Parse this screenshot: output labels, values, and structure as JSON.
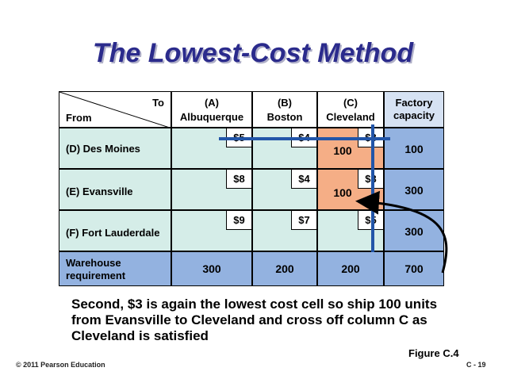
{
  "title": "The  Lowest-Cost Method",
  "table": {
    "corner_to": "To",
    "corner_from": "From",
    "columns": [
      {
        "line1": "(A)",
        "line2": "Albuquerque"
      },
      {
        "line1": "(B)",
        "line2": "Boston"
      },
      {
        "line1": "(C)",
        "line2": "Cleveland"
      }
    ],
    "capacity_header": {
      "line1": "Factory",
      "line2": "capacity"
    },
    "rows": [
      {
        "label": "(D) Des Moines",
        "costs": [
          "$5",
          "$4",
          "$3"
        ],
        "allocations": [
          "",
          "",
          "100"
        ],
        "capacity": "100"
      },
      {
        "label": "(E) Evansville",
        "costs": [
          "$8",
          "$4",
          "$3"
        ],
        "allocations": [
          "",
          "",
          "100"
        ],
        "capacity": "300"
      },
      {
        "label": "(F) Fort Lauderdale",
        "costs": [
          "$9",
          "$7",
          "$5"
        ],
        "allocations": [
          "",
          "",
          ""
        ],
        "capacity": "300"
      }
    ],
    "requirement": {
      "label_line1": "Warehouse",
      "label_line2": "requirement",
      "values": [
        "300",
        "200",
        "200"
      ],
      "total": "700"
    }
  },
  "note_lines": [
    "Second, $3 is again the lowest cost cell so ship 100 units",
    "from Evansville to Cleveland and cross off column C as",
    "Cleveland is satisfied"
  ],
  "figure_label": "Figure C.4",
  "copyright": "© 2011 Pearson Education",
  "page_number": "C - 19",
  "colors": {
    "title": "#2b2b8c",
    "cell": "#d5ede8",
    "capacity": "#93b2e0",
    "highlight": "#f5ae86",
    "crossout": "#2255a8"
  }
}
